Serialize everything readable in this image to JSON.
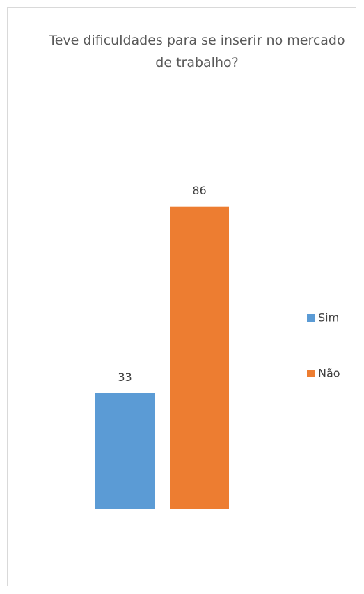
{
  "chart_data": {
    "type": "bar",
    "title": "Teve dificuldades para se inserir no mercado de trabalho?",
    "categories": [
      null
    ],
    "series": [
      {
        "name": "Sim",
        "color": "#5b9bd5",
        "values": [
          33
        ]
      },
      {
        "name": "Não",
        "color": "#ed7d31",
        "values": [
          86
        ]
      }
    ],
    "ylim": [
      0,
      100
    ],
    "legend": "right"
  }
}
